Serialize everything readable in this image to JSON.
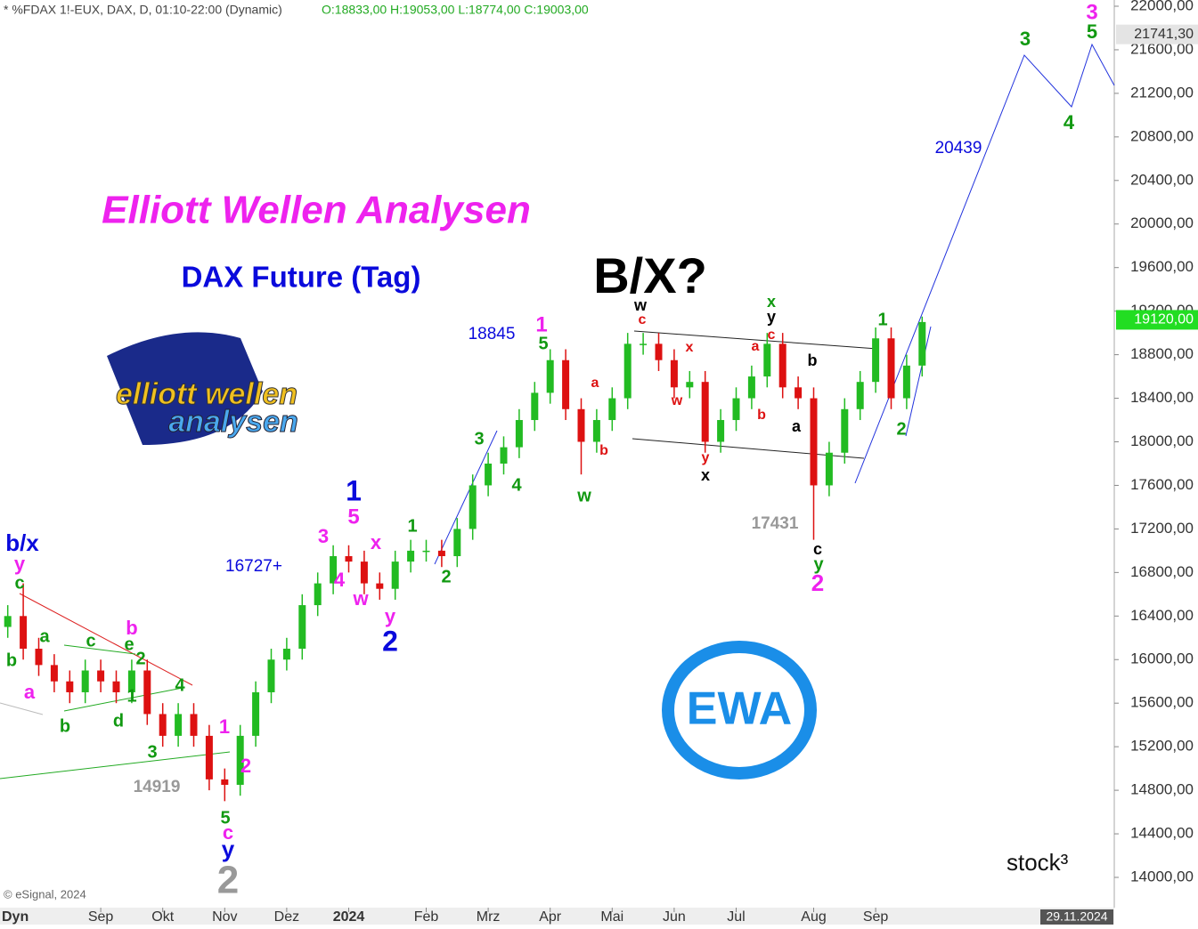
{
  "chart_data": {
    "type": "candlestick",
    "header": "* %FDAX 1!-EUX, DAX, D, 01:10-22:00 (Dynamic)",
    "header_ohlc": "O:18833,00 H:19053,00 L:18774,00 C:19003,00",
    "title": "Elliott Wellen Analysen",
    "subtitle": "DAX Future (Tag)",
    "headline": "B/X?",
    "up_color": "#22bb22",
    "down_color": "#dd1111",
    "categories": [
      null,
      null,
      null,
      null,
      null,
      null,
      "Sep",
      null,
      null,
      null,
      "Okt",
      null,
      null,
      null,
      "Nov",
      null,
      null,
      null,
      "Dez",
      null,
      null,
      null,
      "2024",
      null,
      null,
      null,
      null,
      "Feb",
      null,
      null,
      null,
      "Mrz",
      null,
      null,
      null,
      "Apr",
      null,
      null,
      null,
      "Mai",
      null,
      null,
      null,
      "Jun",
      null,
      null,
      null,
      "Jul",
      null,
      null,
      null,
      null,
      "Aug",
      null,
      null,
      null,
      "Sep",
      null,
      null,
      null
    ],
    "open": [
      16300,
      16400,
      16100,
      15950,
      15800,
      15700,
      15900,
      15800,
      15700,
      15900,
      15500,
      15300,
      15500,
      15300,
      14900,
      14850,
      15300,
      15700,
      16000,
      16100,
      16500,
      16700,
      16950,
      16900,
      16700,
      16650,
      16900,
      17000,
      17000,
      16950,
      17200,
      17600,
      17800,
      17950,
      18200,
      18450,
      18750,
      18300,
      18000,
      18200,
      18400,
      18900,
      18900,
      18750,
      18500,
      18550,
      18000,
      18200,
      18400,
      18600,
      18900,
      18500,
      18400,
      17600,
      17900,
      18300,
      18550,
      18950,
      18400,
      18700
    ],
    "high": [
      16500,
      16700,
      16200,
      16050,
      15900,
      16000,
      16000,
      15900,
      16000,
      16000,
      15600,
      15600,
      15600,
      15400,
      15000,
      15400,
      15800,
      16100,
      16200,
      16600,
      16800,
      17050,
      17050,
      17000,
      16800,
      17000,
      17100,
      17100,
      17100,
      17300,
      17700,
      17900,
      18050,
      18300,
      18550,
      18850,
      18850,
      18400,
      18300,
      18500,
      19000,
      19000,
      19000,
      18850,
      18650,
      18650,
      18300,
      18500,
      18700,
      19000,
      19000,
      18600,
      18500,
      18000,
      18400,
      18650,
      19050,
      19050,
      18800,
      19150
    ],
    "low": [
      16200,
      16000,
      15850,
      15700,
      15600,
      15600,
      15700,
      15600,
      15600,
      15400,
      15200,
      15200,
      15200,
      14800,
      14700,
      14750,
      15200,
      15600,
      15900,
      16000,
      16400,
      16600,
      16800,
      16600,
      16550,
      16550,
      16800,
      16900,
      16850,
      16850,
      17100,
      17500,
      17700,
      17850,
      18100,
      18350,
      18200,
      17700,
      17900,
      18100,
      18300,
      18800,
      18650,
      18400,
      18400,
      17900,
      17900,
      18100,
      18300,
      18500,
      18400,
      18300,
      17100,
      17500,
      17800,
      18200,
      18450,
      18300,
      18300,
      18600
    ],
    "close": [
      16400,
      16100,
      15950,
      15800,
      15700,
      15900,
      15800,
      15700,
      15900,
      15500,
      15300,
      15500,
      15300,
      14900,
      14850,
      15300,
      15700,
      16000,
      16100,
      16500,
      16700,
      16950,
      16900,
      16700,
      16650,
      16900,
      17000,
      17000,
      16950,
      17200,
      17600,
      17800,
      17950,
      18200,
      18450,
      18750,
      18300,
      18000,
      18200,
      18400,
      18900,
      18900,
      18750,
      18500,
      18550,
      18000,
      18200,
      18400,
      18600,
      18900,
      18500,
      18400,
      17600,
      17900,
      18300,
      18550,
      18950,
      18400,
      18700,
      19100
    ],
    "ylim": [
      14000,
      22000
    ],
    "yticks": [
      {
        "value": 14000,
        "label": "14000,00"
      },
      {
        "value": 14400,
        "label": "14400,00"
      },
      {
        "value": 14800,
        "label": "14800,00"
      },
      {
        "value": 15200,
        "label": "15200,00"
      },
      {
        "value": 15600,
        "label": "15600,00"
      },
      {
        "value": 16000,
        "label": "16000,00"
      },
      {
        "value": 16400,
        "label": "16400,00"
      },
      {
        "value": 16800,
        "label": "16800,00"
      },
      {
        "value": 17200,
        "label": "17200,00"
      },
      {
        "value": 17600,
        "label": "17600,00"
      },
      {
        "value": 18000,
        "label": "18000,00"
      },
      {
        "value": 18400,
        "label": "18400,00"
      },
      {
        "value": 18800,
        "label": "18800,00"
      },
      {
        "value": 19200,
        "label": "19200,00"
      },
      {
        "value": 19600,
        "label": "19600,00"
      },
      {
        "value": 20000,
        "label": "20000,00"
      },
      {
        "value": 20400,
        "label": "20400,00"
      },
      {
        "value": 20800,
        "label": "20800,00"
      },
      {
        "value": 21200,
        "label": "21200,00"
      },
      {
        "value": 21600,
        "label": "21600,00"
      },
      {
        "value": 22000,
        "label": "22000,00"
      }
    ],
    "price_markers": [
      {
        "value": 21741.3,
        "label": "21741,30",
        "color": "#e4e4e4"
      },
      {
        "value": 19120,
        "label": "19120,00",
        "color": "#22dd22"
      }
    ],
    "annotations": [
      {
        "text": "b/x",
        "color": "#0a0adc"
      },
      {
        "text": "y",
        "color": "#ee22ee"
      },
      {
        "text": "c",
        "color": "#119911"
      },
      {
        "text": "b",
        "color": "#119911"
      },
      {
        "text": "a",
        "color": "#ee22ee"
      },
      {
        "text": "a",
        "color": "#119911"
      },
      {
        "text": "c",
        "color": "#119911"
      },
      {
        "text": "b",
        "color": "#119911"
      },
      {
        "text": "d",
        "color": "#119911"
      },
      {
        "text": "b",
        "color": "#ee22ee"
      },
      {
        "text": "e",
        "color": "#119911"
      },
      {
        "text": "2",
        "color": "#119911"
      },
      {
        "text": "1",
        "color": "#119911"
      },
      {
        "text": "4",
        "color": "#119911"
      },
      {
        "text": "3",
        "color": "#119911"
      },
      {
        "text": "14919",
        "color": "#999999"
      },
      {
        "text": "1",
        "color": "#ee22ee"
      },
      {
        "text": "2",
        "color": "#ee22ee"
      },
      {
        "text": "5",
        "color": "#119911"
      },
      {
        "text": "c",
        "color": "#ee22ee"
      },
      {
        "text": "y",
        "color": "#0a0adc"
      },
      {
        "text": "2",
        "color": "#999999"
      },
      {
        "text": "16727+",
        "color": "#0a0adc"
      },
      {
        "text": "3",
        "color": "#ee22ee"
      },
      {
        "text": "1",
        "color": "#0a0adc"
      },
      {
        "text": "5",
        "color": "#ee22ee"
      },
      {
        "text": "x",
        "color": "#ee22ee"
      },
      {
        "text": "4",
        "color": "#ee22ee"
      },
      {
        "text": "w",
        "color": "#ee22ee"
      },
      {
        "text": "y",
        "color": "#ee22ee"
      },
      {
        "text": "2",
        "color": "#0a0adc"
      },
      {
        "text": "1",
        "color": "#119911"
      },
      {
        "text": "2",
        "color": "#119911"
      },
      {
        "text": "3",
        "color": "#119911"
      },
      {
        "text": "4",
        "color": "#119911"
      },
      {
        "text": "18845",
        "color": "#0a0adc"
      },
      {
        "text": "1",
        "color": "#ee22ee"
      },
      {
        "text": "5",
        "color": "#119911"
      },
      {
        "text": "a",
        "color": "#dd1111"
      },
      {
        "text": "b",
        "color": "#dd1111"
      },
      {
        "text": "w",
        "color": "#119911"
      },
      {
        "text": "w",
        "color": "#000000"
      },
      {
        "text": "c",
        "color": "#dd1111"
      },
      {
        "text": "x",
        "color": "#dd1111"
      },
      {
        "text": "w",
        "color": "#dd1111"
      },
      {
        "text": "y",
        "color": "#dd1111"
      },
      {
        "text": "x",
        "color": "#000000"
      },
      {
        "text": "x",
        "color": "#119911"
      },
      {
        "text": "y",
        "color": "#000000"
      },
      {
        "text": "c",
        "color": "#dd1111"
      },
      {
        "text": "a",
        "color": "#dd1111"
      },
      {
        "text": "b",
        "color": "#dd1111"
      },
      {
        "text": "b",
        "color": "#000000"
      },
      {
        "text": "a",
        "color": "#000000"
      },
      {
        "text": "17431",
        "color": "#999999"
      },
      {
        "text": "c",
        "color": "#000000"
      },
      {
        "text": "y",
        "color": "#119911"
      },
      {
        "text": "2",
        "color": "#ee22ee"
      },
      {
        "text": "1",
        "color": "#119911"
      },
      {
        "text": "2",
        "color": "#119911"
      },
      {
        "text": "20439",
        "color": "#0a0adc"
      },
      {
        "text": "3",
        "color": "#119911"
      },
      {
        "text": "4",
        "color": "#119911"
      },
      {
        "text": "3",
        "color": "#ee22ee"
      },
      {
        "text": "5",
        "color": "#119911"
      }
    ],
    "logo_top": "elliott wellen",
    "logo_bottom": "analysen",
    "badge": "EWA",
    "copyright": "© eSignal, 2024",
    "brand": "stock³",
    "mode": "Dyn",
    "date": "29.11.2024"
  }
}
